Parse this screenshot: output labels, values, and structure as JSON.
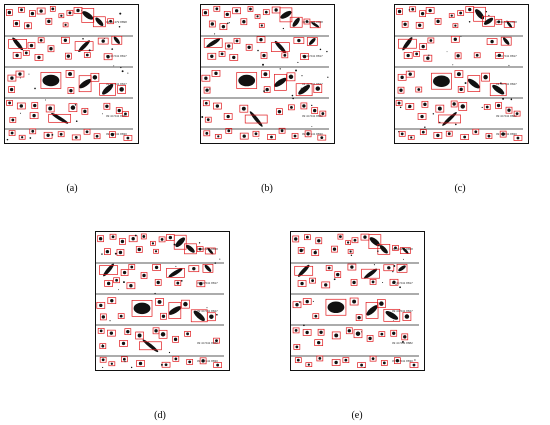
{
  "figure": {
    "panels": [
      {
        "id": "a",
        "caption": "(a)",
        "strip_labels": [
          "09 44 479 8898",
          "09 44 541 8817",
          "09 44 541 8847",
          "09 44 541 8882",
          "09 44 541 8830"
        ]
      },
      {
        "id": "b",
        "caption": "(b)",
        "strip_labels": [
          "09 44 479 8898",
          "09 44 541 8817",
          "09 44 541 8847",
          "09 44 541 8882",
          "09 44 541 8830"
        ]
      },
      {
        "id": "c",
        "caption": "(c)",
        "strip_labels": [
          "09 44 479 8898",
          "09 44 541 8817",
          "09 44 541 8847",
          "09 44 541 8882",
          "09 44 541 8830"
        ]
      },
      {
        "id": "d",
        "caption": "(d)",
        "strip_labels": [
          "09 44 479 8898",
          "09 44 541 8817",
          "09 44 541 8847",
          "09 44 541 8882",
          "09 44 541 8830"
        ]
      },
      {
        "id": "e",
        "caption": "(e)",
        "strip_labels": [
          "09 44 479 8898",
          "09 44 541 8817",
          "09 44 541 8847",
          "09 44 541 8882",
          "09 44 541 8830"
        ]
      }
    ],
    "colors": {
      "detection_box": "#e0191d",
      "blob": "#111111",
      "strip_line": "#222222"
    }
  }
}
